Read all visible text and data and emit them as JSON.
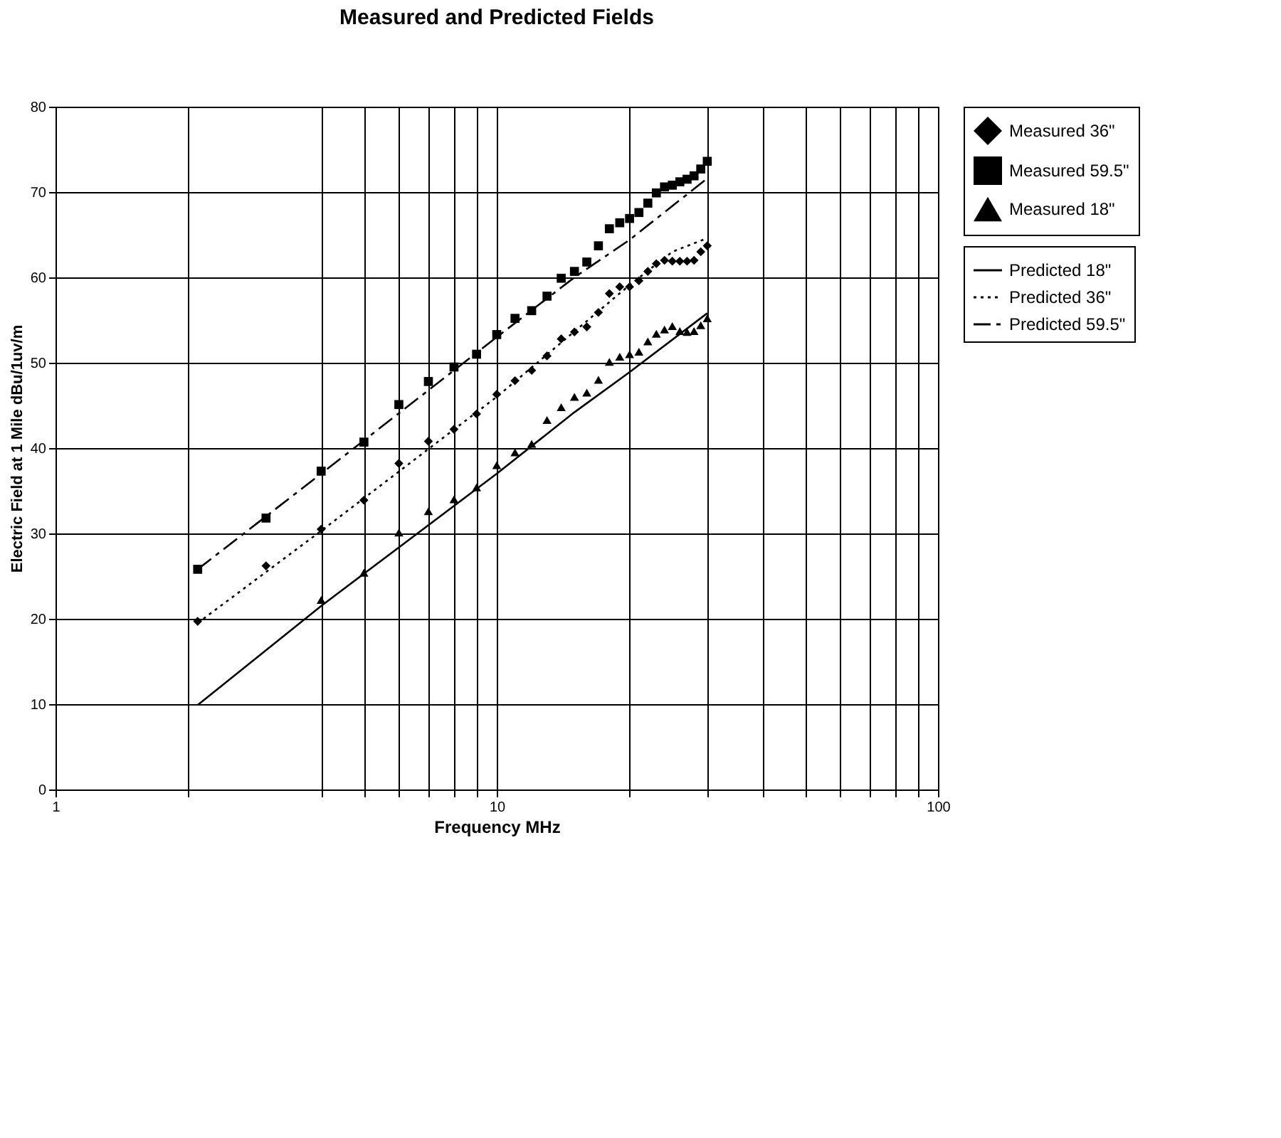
{
  "chart_data": {
    "type": "scatter",
    "title": "Measured and Predicted Fields",
    "xlabel": "Frequency MHz",
    "ylabel": "Electric Field at 1 Mile dBu/1uv/m",
    "log": "x",
    "grid": true,
    "legend": "right",
    "xlim": [
      1,
      100
    ],
    "ylim": [
      0,
      80
    ],
    "xticks": [
      1,
      {
        "value": 2,
        "label": null
      },
      {
        "value": 4,
        "label": null
      },
      {
        "value": 5,
        "label": null
      },
      {
        "value": 6,
        "label": null
      },
      {
        "value": 7,
        "label": null
      },
      {
        "value": 8,
        "label": null
      },
      {
        "value": 9,
        "label": null
      },
      10,
      {
        "value": 20,
        "label": null
      },
      {
        "value": 30,
        "label": null
      },
      {
        "value": 40,
        "label": null
      },
      {
        "value": 50,
        "label": null
      },
      {
        "value": 60,
        "label": null
      },
      {
        "value": 70,
        "label": null
      },
      {
        "value": 80,
        "label": null
      },
      {
        "value": 90,
        "label": null
      },
      100
    ],
    "yticks": [
      0,
      10,
      20,
      30,
      40,
      50,
      60,
      70,
      80
    ],
    "series": [
      {
        "name": "Measured 36\"",
        "marker": "diamond",
        "color": "#000000",
        "x": [
          2.1,
          3,
          4,
          5,
          6,
          7,
          8,
          9,
          10,
          11,
          12,
          13,
          14,
          15,
          16,
          17,
          18,
          19,
          20,
          21,
          22,
          23,
          24,
          25,
          26,
          27,
          28,
          29,
          30
        ],
        "values": [
          19.7,
          26.2,
          30.5,
          33.9,
          38.2,
          40.8,
          42.2,
          44.0,
          46.3,
          47.9,
          49.1,
          50.8,
          52.8,
          53.6,
          54.2,
          55.9,
          58.1,
          58.9,
          58.9,
          59.6,
          60.7,
          61.6,
          62.0,
          61.9,
          61.9,
          61.9,
          62.0,
          63.0,
          63.7
        ]
      },
      {
        "name": "Measured 59.5\"",
        "marker": "square",
        "color": "#000000",
        "x": [
          2.1,
          3,
          4,
          5,
          6,
          7,
          8,
          9,
          10,
          11,
          12,
          13,
          14,
          15,
          16,
          17,
          18,
          19,
          20,
          21,
          22,
          23,
          24,
          25,
          26,
          27,
          28,
          29,
          30
        ],
        "values": [
          25.8,
          31.8,
          37.3,
          40.7,
          45.1,
          47.8,
          49.5,
          51.0,
          53.3,
          55.2,
          56.1,
          57.8,
          59.9,
          60.7,
          61.8,
          63.7,
          65.7,
          66.4,
          66.9,
          67.6,
          68.7,
          69.9,
          70.6,
          70.8,
          71.2,
          71.5,
          71.9,
          72.7,
          73.6
        ]
      },
      {
        "name": "Measured 18\"",
        "marker": "triangle",
        "color": "#000000",
        "x": [
          4,
          5,
          6,
          7,
          8,
          9,
          10,
          11,
          12,
          13,
          14,
          15,
          16,
          17,
          18,
          19,
          20,
          21,
          22,
          23,
          24,
          25,
          26,
          27,
          28,
          29,
          30
        ],
        "values": [
          22.2,
          25.4,
          30.1,
          32.6,
          34.0,
          35.4,
          38.0,
          39.5,
          40.5,
          43.3,
          44.8,
          46.0,
          46.5,
          48.0,
          50.1,
          50.7,
          51.0,
          51.3,
          52.5,
          53.4,
          53.9,
          54.3,
          53.7,
          53.6,
          53.7,
          54.4,
          55.2
        ]
      },
      {
        "name": "Predicted 18\"",
        "type": "line",
        "line_style": "solid",
        "color": "#000000",
        "x": [
          2.1,
          4,
          10,
          15,
          20,
          30
        ],
        "values": [
          9.9,
          21.5,
          37.0,
          44.2,
          48.9,
          55.8
        ]
      },
      {
        "name": "Predicted 36\"",
        "type": "line",
        "line_style": "dotted",
        "color": "#000000",
        "x": [
          2.1,
          4,
          10,
          20,
          25,
          30
        ],
        "values": [
          19.5,
          30.3,
          46.0,
          59.1,
          63.0,
          64.6
        ]
      },
      {
        "name": "Predicted 59.5\"",
        "type": "line",
        "line_style": "dashed",
        "color": "#000000",
        "x": [
          2.1,
          4,
          10,
          15,
          20,
          30
        ],
        "values": [
          25.8,
          37.0,
          53.0,
          60.0,
          64.4,
          71.6
        ]
      }
    ]
  }
}
